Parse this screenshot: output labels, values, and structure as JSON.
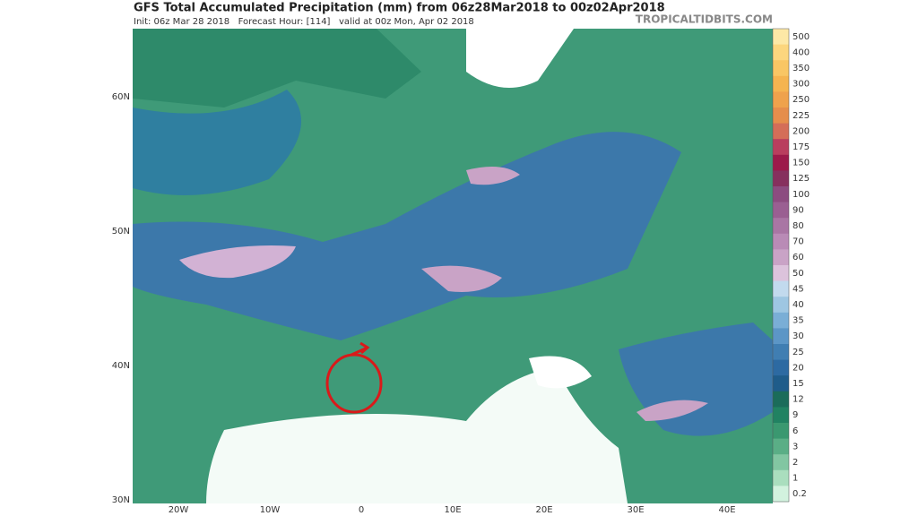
{
  "header": {
    "title": "GFS Total Accumulated Precipitation (mm) from 06z28Mar2018 to 00z02Apr2018",
    "subtitle": "Init: 06z Mar 28 2018   Forecast Hour: [114]   valid at 00z Mon, Apr 02 2018",
    "brand": "TROPICALTIDBITS.COM"
  },
  "map": {
    "lat_labels": [
      "60N",
      "50N",
      "40N",
      "30N"
    ],
    "lon_labels": [
      "20W",
      "10W",
      "0",
      "10E",
      "20E",
      "30E",
      "40E"
    ]
  },
  "colorbar": {
    "levels": [
      {
        "label": "500",
        "color": "#fde8a6"
      },
      {
        "label": "400",
        "color": "#fcd67e"
      },
      {
        "label": "350",
        "color": "#f9c664"
      },
      {
        "label": "300",
        "color": "#f5b450"
      },
      {
        "label": "250",
        "color": "#efa24c"
      },
      {
        "label": "225",
        "color": "#e58e4c"
      },
      {
        "label": "200",
        "color": "#d46e58"
      },
      {
        "label": "175",
        "color": "#b93e5e"
      },
      {
        "label": "150",
        "color": "#9c1a4a"
      },
      {
        "label": "125",
        "color": "#86305e"
      },
      {
        "label": "100",
        "color": "#8c4c80"
      },
      {
        "label": "90",
        "color": "#9a5f92"
      },
      {
        "label": "80",
        "color": "#a976a4"
      },
      {
        "label": "70",
        "color": "#b98bb6"
      },
      {
        "label": "60",
        "color": "#c9a3c6"
      },
      {
        "label": "50",
        "color": "#dcc3dc"
      },
      {
        "label": "45",
        "color": "#c2daee"
      },
      {
        "label": "40",
        "color": "#9ec6e2"
      },
      {
        "label": "35",
        "color": "#7aaed6"
      },
      {
        "label": "30",
        "color": "#5c96c6"
      },
      {
        "label": "25",
        "color": "#407eb2"
      },
      {
        "label": "20",
        "color": "#2d6aa2"
      },
      {
        "label": "15",
        "color": "#1f5c8a"
      },
      {
        "label": "12",
        "color": "#1b6c5a"
      },
      {
        "label": "9",
        "color": "#218262"
      },
      {
        "label": "6",
        "color": "#3a9870"
      },
      {
        "label": "3",
        "color": "#5aae86"
      },
      {
        "label": "2",
        "color": "#82c6a2"
      },
      {
        "label": "1",
        "color": "#aadebe"
      },
      {
        "label": "0.2",
        "color": "#d2f2de"
      }
    ]
  }
}
